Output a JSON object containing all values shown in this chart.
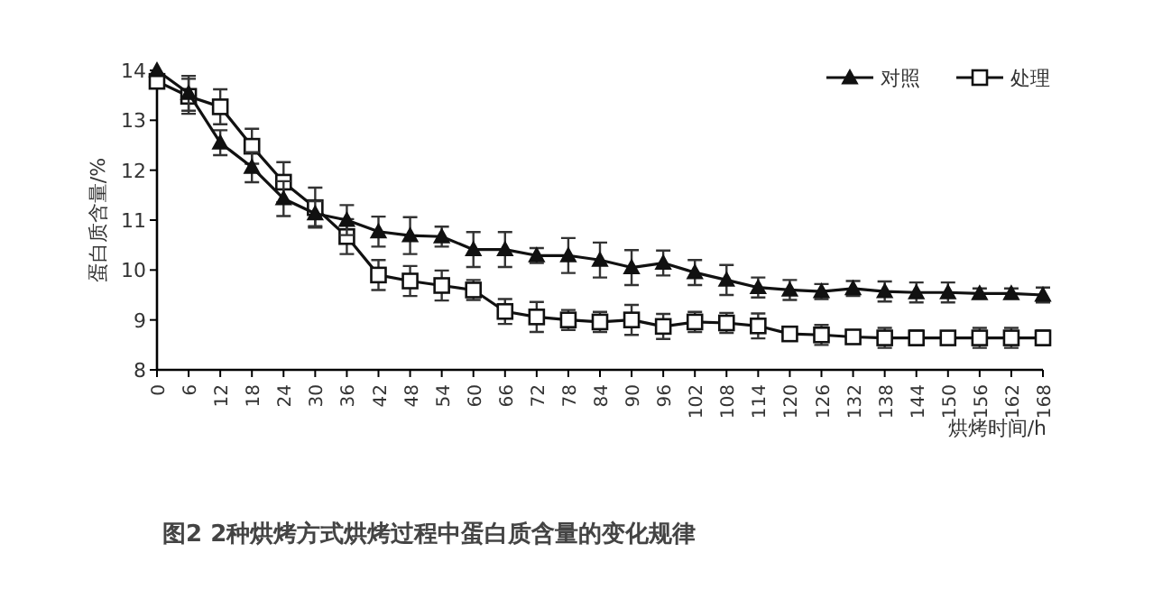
{
  "chart_data": {
    "type": "line",
    "title": "图2 2种烘烤方式烘烤过程中蛋白质含量的变化规律",
    "xlabel": "烘烤时间/h",
    "ylabel": "蛋白质含量/%",
    "x": [
      0,
      6,
      12,
      18,
      24,
      30,
      36,
      42,
      48,
      54,
      60,
      66,
      72,
      78,
      84,
      90,
      96,
      102,
      108,
      114,
      120,
      126,
      132,
      138,
      144,
      150,
      156,
      162,
      168
    ],
    "series": [
      {
        "name": "对照",
        "color": "#111111",
        "marker": "triangle",
        "values": [
          14.0,
          13.54,
          12.55,
          12.06,
          11.43,
          11.13,
          11.0,
          10.77,
          10.69,
          10.67,
          10.41,
          10.41,
          10.29,
          10.29,
          10.2,
          10.05,
          10.14,
          9.95,
          9.8,
          9.65,
          9.6,
          9.57,
          9.63,
          9.57,
          9.55,
          9.55,
          9.53,
          9.53,
          9.5
        ],
        "errors": [
          null,
          0.35,
          0.25,
          0.3,
          0.35,
          0.25,
          0.3,
          0.3,
          0.37,
          0.2,
          0.35,
          0.35,
          0.15,
          0.35,
          0.35,
          0.35,
          0.25,
          0.25,
          0.3,
          0.2,
          0.2,
          0.15,
          0.15,
          0.2,
          0.2,
          0.2,
          0.1,
          0.1,
          0.15
        ]
      },
      {
        "name": "处理",
        "color": "#111111",
        "marker": "square",
        "values": [
          13.78,
          13.48,
          13.27,
          12.48,
          11.76,
          11.25,
          10.67,
          9.9,
          9.78,
          9.69,
          9.6,
          9.17,
          9.06,
          9.0,
          8.96,
          9.0,
          8.87,
          8.96,
          8.94,
          8.88,
          8.72,
          8.7,
          8.66,
          8.64,
          8.64,
          8.64,
          8.64,
          8.64,
          8.64
        ],
        "errors": [
          null,
          0.35,
          0.35,
          0.35,
          0.4,
          0.4,
          0.35,
          0.3,
          0.3,
          0.3,
          0.2,
          0.25,
          0.3,
          0.2,
          0.2,
          0.3,
          0.25,
          0.2,
          0.2,
          0.25,
          null,
          0.2,
          null,
          0.2,
          0.15,
          null,
          0.2,
          0.2,
          0.15
        ]
      }
    ],
    "xlim": [
      0,
      168
    ],
    "xticks": [
      0,
      6,
      12,
      18,
      24,
      30,
      36,
      42,
      48,
      54,
      60,
      66,
      72,
      78,
      84,
      90,
      96,
      102,
      108,
      114,
      120,
      126,
      132,
      138,
      144,
      150,
      156,
      162,
      168
    ],
    "ylim": [
      8,
      14
    ],
    "yticks": [
      8,
      9,
      10,
      11,
      12,
      13,
      14
    ],
    "grid": false,
    "legend": "top right",
    "line_style": "solid"
  }
}
